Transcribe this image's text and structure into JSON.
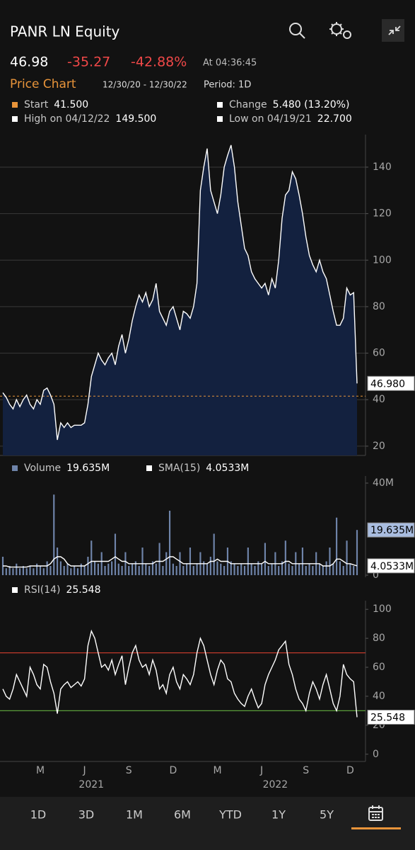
{
  "header": {
    "ticker": "PANR LN Equity",
    "last_price": "46.98",
    "net_change": "-35.27",
    "pct_change": "-42.88%",
    "time": "At 04:36:45"
  },
  "chart_header": {
    "title": "Price Chart",
    "date_range": "12/30/20 - 12/30/22",
    "period": "Period: 1D",
    "stats": [
      {
        "label": "Start",
        "value": "41.500"
      },
      {
        "label": "Change",
        "value": "5.480 (13.20%)"
      },
      {
        "label": "High on 04/12/22",
        "value": "149.500"
      },
      {
        "label": "Low on 04/19/21",
        "value": "22.700"
      }
    ]
  },
  "chart_data": [
    {
      "type": "area",
      "color": "#ffffff",
      "fill": "#13213f",
      "values": [
        43,
        41,
        38,
        36,
        40,
        37,
        40,
        42,
        38,
        36,
        40,
        38,
        44,
        45,
        42,
        38,
        22.7,
        30,
        28,
        30,
        28,
        29,
        29,
        29,
        30,
        38,
        50,
        55,
        60,
        57,
        55,
        58,
        60,
        55,
        63,
        68,
        60,
        66,
        74,
        80,
        85,
        82,
        86,
        80,
        83,
        90,
        78,
        75,
        72,
        78,
        80,
        75,
        70,
        78,
        77,
        75,
        80,
        90,
        130,
        140,
        148,
        130,
        125,
        120,
        128,
        140,
        145,
        149.5,
        140,
        125,
        115,
        105,
        102,
        95,
        92,
        90,
        88,
        90,
        85,
        92,
        88,
        100,
        118,
        128,
        130,
        138,
        135,
        128,
        120,
        110,
        102,
        98,
        95,
        100,
        95,
        92,
        85,
        78,
        72,
        72,
        75,
        88,
        85,
        86,
        46.98
      ],
      "last_label": "46.980",
      "start_line": {
        "value": 41.5,
        "color": "#e8943a"
      },
      "ylim": [
        16,
        154
      ],
      "yticks": [
        20,
        40,
        60,
        80,
        100,
        120,
        140
      ],
      "grid": true
    },
    {
      "type": "bar",
      "series": [
        {
          "name": "Volume",
          "type": "bar",
          "color": "#6f84aa",
          "last_label": "19.635M",
          "values": [
            8,
            3,
            4,
            3,
            5,
            3,
            4,
            3,
            4,
            3,
            5,
            4,
            3,
            6,
            4,
            35,
            12,
            6,
            4,
            5,
            3,
            4,
            3,
            5,
            4,
            8,
            15,
            6,
            5,
            10,
            4,
            5,
            6,
            18,
            5,
            4,
            10,
            4,
            5,
            6,
            4,
            12,
            5,
            4,
            6,
            5,
            14,
            4,
            10,
            28,
            5,
            4,
            10,
            4,
            5,
            12,
            4,
            5,
            10,
            6,
            5,
            8,
            18,
            6,
            5,
            4,
            12,
            6,
            5,
            4,
            5,
            4,
            12,
            5,
            4,
            6,
            5,
            14,
            4,
            5,
            10,
            4,
            6,
            15,
            5,
            4,
            10,
            5,
            12,
            4,
            5,
            4,
            10,
            5,
            4,
            6,
            12,
            5,
            25,
            6,
            4,
            15,
            5,
            4,
            19.635
          ]
        },
        {
          "name": "SMA(15)",
          "type": "line",
          "color": "#ffffff",
          "last_label": "4.0533M",
          "values": [
            4,
            4,
            3.5,
            3.5,
            3.5,
            3.5,
            3.5,
            3.5,
            4,
            4,
            4,
            4,
            4,
            4,
            5,
            7,
            8,
            8,
            7,
            5,
            4,
            4,
            4,
            4,
            4,
            5,
            6,
            6,
            6,
            6,
            6,
            6,
            7,
            8,
            7,
            6,
            6,
            5,
            5,
            5,
            5,
            5,
            5,
            5,
            5,
            6,
            6,
            6,
            7,
            8,
            8,
            7,
            6,
            5,
            5,
            5,
            5,
            5,
            5,
            5,
            5,
            6,
            6,
            7,
            6,
            6,
            6,
            5,
            5,
            5,
            5,
            5,
            5,
            5,
            5,
            5,
            5,
            6,
            5,
            5,
            5,
            5,
            5,
            6,
            6,
            5,
            5,
            5,
            5,
            5,
            5,
            5,
            5,
            5,
            4,
            4,
            4,
            5,
            7,
            7,
            6,
            5,
            5,
            4.5,
            4.0533
          ]
        }
      ],
      "ylim": [
        0,
        40
      ],
      "yticks": [
        0,
        {
          "value": 40,
          "label": "40M"
        }
      ]
    },
    {
      "type": "line",
      "series": [
        {
          "name": "RSI(14)",
          "color": "#ffffff",
          "last_label": "25.548",
          "values": [
            45,
            40,
            38,
            45,
            55,
            50,
            45,
            40,
            60,
            55,
            48,
            45,
            62,
            60,
            50,
            42,
            28,
            45,
            48,
            50,
            46,
            48,
            50,
            47,
            52,
            75,
            85,
            80,
            70,
            60,
            62,
            58,
            65,
            55,
            62,
            68,
            48,
            60,
            70,
            75,
            65,
            60,
            62,
            55,
            65,
            58,
            45,
            48,
            42,
            55,
            60,
            50,
            45,
            55,
            52,
            48,
            55,
            70,
            80,
            75,
            65,
            55,
            48,
            58,
            65,
            62,
            52,
            50,
            42,
            38,
            35,
            33,
            40,
            45,
            38,
            32,
            35,
            48,
            55,
            60,
            65,
            72,
            75,
            78,
            62,
            55,
            45,
            38,
            35,
            30,
            42,
            50,
            45,
            38,
            48,
            55,
            45,
            35,
            30,
            40,
            62,
            55,
            52,
            50,
            25.548
          ]
        }
      ],
      "categories": [
        null,
        null,
        null,
        null,
        null,
        null,
        null,
        null,
        null,
        null,
        null,
        "M",
        null,
        null,
        null,
        null,
        null,
        null,
        null,
        null,
        null,
        null,
        null,
        null,
        "J",
        null,
        null,
        null,
        null,
        null,
        null,
        null,
        null,
        null,
        null,
        null,
        null,
        "S",
        null,
        null,
        null,
        null,
        null,
        null,
        null,
        null,
        null,
        null,
        null,
        null,
        "D",
        null,
        null,
        null,
        null,
        null,
        null,
        null,
        null,
        null,
        null,
        null,
        null,
        "M",
        null,
        null,
        null,
        null,
        null,
        null,
        null,
        null,
        null,
        null,
        null,
        null,
        "J",
        null,
        null,
        null,
        null,
        null,
        null,
        null,
        null,
        null,
        null,
        null,
        null,
        "S",
        null,
        null,
        null,
        null,
        null,
        null,
        null,
        null,
        null,
        null,
        null,
        null,
        "D",
        null,
        null
      ],
      "year_labels": [
        {
          "value": 26,
          "label": "2021"
        },
        {
          "value": 80,
          "label": "2022"
        }
      ],
      "reference_lines": [
        {
          "value": 70,
          "color": "#c0392b"
        },
        {
          "value": 30,
          "color": "#5a9e3a"
        }
      ],
      "ylim": [
        -5,
        105
      ],
      "yticks": [
        0,
        20,
        40,
        60,
        80,
        100
      ]
    }
  ],
  "tabs": [
    "1D",
    "3D",
    "1M",
    "6M",
    "YTD",
    "1Y",
    "5Y"
  ]
}
